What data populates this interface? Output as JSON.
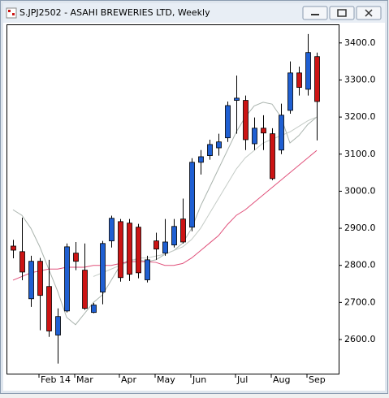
{
  "chart_data": {
    "type": "candlestick",
    "title": "S.JPJ2502 - ASAHI BREWERIES LTD, Weekly",
    "categories": [
      null,
      null,
      null,
      "Feb 14",
      null,
      null,
      null,
      "Mar",
      null,
      null,
      null,
      null,
      "Apr",
      null,
      null,
      null,
      "May",
      null,
      null,
      null,
      "Jun",
      null,
      null,
      null,
      null,
      "Jul",
      null,
      null,
      null,
      "Aug",
      null,
      null,
      null,
      "Sep",
      null
    ],
    "open": [
      2852,
      2837,
      2710,
      2811,
      2743,
      2612,
      2677,
      2833,
      2787,
      2673,
      2728,
      2866,
      2918,
      2914,
      2903,
      2761,
      2866,
      2833,
      2855,
      2925,
      2903,
      3078,
      3096,
      3117,
      3144,
      3245,
      3245,
      3128,
      3170,
      3155,
      3111,
      3218,
      3319,
      3275,
      3363
    ],
    "high": [
      2869,
      2929,
      2826,
      2820,
      2815,
      2684,
      2859,
      2863,
      2859,
      2699,
      2866,
      2934,
      2925,
      2925,
      2912,
      2826,
      2888,
      2925,
      2925,
      2980,
      3089,
      3111,
      3139,
      3155,
      3242,
      3312,
      3258,
      3199,
      3205,
      3170,
      3236,
      3350,
      3336,
      3424,
      3374
    ],
    "low": [
      2819,
      2760,
      2688,
      2625,
      2607,
      2535,
      2673,
      2787,
      2680,
      2671,
      2695,
      2848,
      2756,
      2758,
      2765,
      2754,
      2815,
      2826,
      2848,
      2859,
      2892,
      3045,
      3085,
      3096,
      3133,
      3155,
      3111,
      3111,
      3111,
      3030,
      3100,
      3209,
      3258,
      3258,
      3137
    ],
    "close": [
      2841,
      2782,
      2811,
      2719,
      2623,
      2662,
      2850,
      2811,
      2684,
      2693,
      2859,
      2927,
      2767,
      2776,
      2780,
      2815,
      2844,
      2863,
      2905,
      2863,
      3078,
      3093,
      3126,
      3133,
      3231,
      3251,
      3139,
      3170,
      3157,
      3034,
      3205,
      3319,
      3280,
      3374,
      3242
    ],
    "up_color": "#1f5fd2",
    "down_color": "#cc1414",
    "overlays": [
      {
        "color": "#aab4ae",
        "values": [
          2950,
          2935,
          2900,
          2850,
          2790,
          2730,
          2660,
          2640,
          2670,
          2700,
          2720,
          2760,
          2800,
          2815,
          2815,
          2810,
          2815,
          2830,
          2840,
          2860,
          2900,
          2960,
          3010,
          3060,
          3110,
          3160,
          3200,
          3230,
          3240,
          3235,
          3200,
          3130,
          3150,
          3180,
          3200
        ]
      },
      {
        "color": "#c4cbc6",
        "values": [
          null,
          null,
          null,
          null,
          null,
          null,
          null,
          null,
          null,
          2770,
          2780,
          2790,
          2800,
          2810,
          2820,
          2820,
          2825,
          2830,
          2840,
          2850,
          2870,
          2900,
          2940,
          2980,
          3020,
          3060,
          3090,
          3110,
          3130,
          3140,
          3150,
          3160,
          3175,
          3190,
          3200
        ]
      },
      {
        "color": "#e0507a",
        "values": [
          2760,
          2770,
          2780,
          2785,
          2790,
          2790,
          2795,
          2795,
          2795,
          2800,
          2800,
          2800,
          2805,
          2810,
          2810,
          2810,
          2808,
          2800,
          2800,
          2805,
          2820,
          2840,
          2860,
          2880,
          2910,
          2935,
          2950,
          2970,
          2990,
          3010,
          3030,
          3050,
          3070,
          3090,
          3110
        ]
      }
    ],
    "ylim": [
      2508,
      3450
    ],
    "yticks": [
      {
        "value": 2600,
        "label": "2600.0"
      },
      {
        "value": 2700,
        "label": "2700.0"
      },
      {
        "value": 2800,
        "label": "2800.0"
      },
      {
        "value": 2900,
        "label": "2900.0"
      },
      {
        "value": 3000,
        "label": "3000.0"
      },
      {
        "value": 3100,
        "label": "3100.0"
      },
      {
        "value": 3200,
        "label": "3200.0"
      },
      {
        "value": 3300,
        "label": "3300.0"
      },
      {
        "value": 3400,
        "label": "3400.0"
      }
    ]
  }
}
